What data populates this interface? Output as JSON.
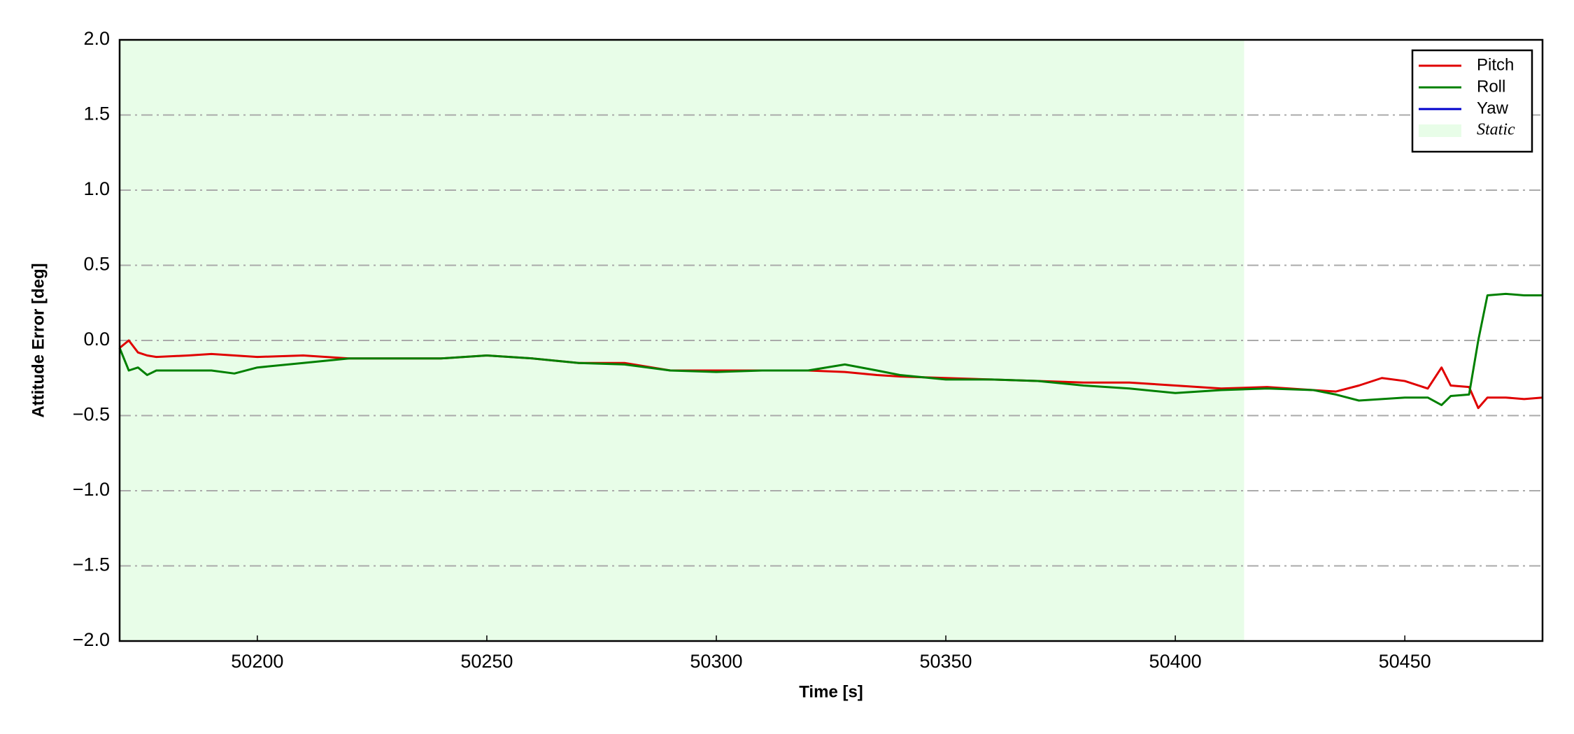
{
  "chart_data": {
    "type": "line",
    "x_label": "Time [s]",
    "y_label": "Attitude Error [deg]",
    "x": [
      50170,
      50172,
      50174,
      50176,
      50178,
      50185,
      50190,
      50195,
      50200,
      50210,
      50220,
      50230,
      50240,
      50250,
      50260,
      50270,
      50280,
      50290,
      50300,
      50310,
      50320,
      50328,
      50335,
      50340,
      50350,
      50360,
      50370,
      50380,
      50390,
      50400,
      50410,
      50420,
      50430,
      50435,
      50440,
      50445,
      50450,
      50455,
      50458,
      50460,
      50464,
      50466,
      50468,
      50472,
      50476,
      50480
    ],
    "series": [
      {
        "name": "Pitch",
        "color": "#e00000",
        "values": [
          -0.05,
          0,
          -0.08,
          -0.1,
          -0.11,
          -0.1,
          -0.09,
          -0.1,
          -0.11,
          -0.1,
          -0.12,
          -0.12,
          -0.12,
          -0.1,
          -0.12,
          -0.15,
          -0.15,
          -0.2,
          -0.2,
          -0.2,
          -0.2,
          -0.21,
          -0.23,
          -0.24,
          -0.25,
          -0.26,
          -0.27,
          -0.28,
          -0.28,
          -0.3,
          -0.32,
          -0.31,
          -0.33,
          -0.34,
          -0.3,
          -0.25,
          -0.27,
          -0.32,
          -0.18,
          -0.3,
          -0.31,
          -0.45,
          -0.38,
          -0.38,
          -0.39,
          -0.38
        ]
      },
      {
        "name": "Roll",
        "color": "#008000",
        "values": [
          -0.05,
          -0.2,
          -0.18,
          -0.23,
          -0.2,
          -0.2,
          -0.2,
          -0.22,
          -0.18,
          -0.15,
          -0.12,
          -0.12,
          -0.12,
          -0.1,
          -0.12,
          -0.15,
          -0.16,
          -0.2,
          -0.21,
          -0.2,
          -0.2,
          -0.16,
          -0.2,
          -0.23,
          -0.26,
          -0.26,
          -0.27,
          -0.3,
          -0.32,
          -0.35,
          -0.33,
          -0.32,
          -0.33,
          -0.36,
          -0.4,
          -0.39,
          -0.38,
          -0.38,
          -0.43,
          -0.37,
          -0.36,
          0.0,
          0.3,
          0.31,
          0.3,
          0.3
        ]
      },
      {
        "name": "Yaw",
        "color": "#0000cc",
        "values": [
          null,
          null,
          null,
          null,
          null,
          null,
          null,
          null,
          null,
          null,
          null,
          null,
          null,
          null,
          null,
          null,
          null,
          null,
          null,
          null,
          null,
          null,
          null,
          null,
          null,
          null,
          null,
          null,
          null,
          null,
          null,
          null,
          null,
          null,
          null,
          null,
          null,
          null,
          null,
          null,
          null,
          null,
          null,
          null,
          null,
          null
        ]
      }
    ],
    "span": {
      "name": "Static",
      "color": "#e8fde8",
      "range": [
        50170,
        50415
      ]
    },
    "xlim": [
      50170,
      50480
    ],
    "xticks": [
      50200,
      50250,
      50300,
      50350,
      50400,
      50450
    ],
    "ylim": [
      -2,
      2
    ],
    "yticks": [
      {
        "value": -2,
        "label": "−2.0"
      },
      {
        "value": -1.5,
        "label": "−1.5"
      },
      {
        "value": -1,
        "label": "−1.0"
      },
      {
        "value": -0.5,
        "label": "−0.5"
      },
      {
        "value": 0,
        "label": "0.0"
      },
      {
        "value": 0.5,
        "label": "0.5"
      },
      {
        "value": 1,
        "label": "1.0"
      },
      {
        "value": 1.5,
        "label": "1.5"
      },
      {
        "value": 2,
        "label": "2.0"
      }
    ],
    "grid": true,
    "legend": "upper right"
  }
}
